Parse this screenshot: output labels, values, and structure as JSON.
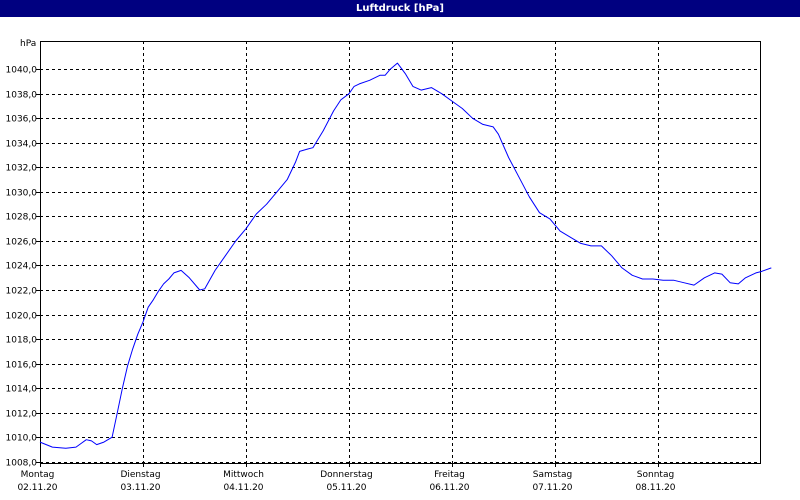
{
  "window": {
    "title": "Luftdruck [hPa]"
  },
  "chart_data": {
    "type": "line",
    "title": "Luftdruck [hPa]",
    "ylabel": "hPa",
    "xlabel": "",
    "ylim": [
      1007.9,
      1042.3
    ],
    "yticks": [
      "1008,0",
      "1010,0",
      "1012,0",
      "1014,0",
      "1016,0",
      "1018,0",
      "1020,0",
      "1022,0",
      "1024,0",
      "1026,0",
      "1028,0",
      "1030,0",
      "1032,0",
      "1034,0",
      "1036,0",
      "1038,0",
      "1040,0"
    ],
    "ytick_values": [
      1008,
      1010,
      1012,
      1014,
      1016,
      1018,
      1020,
      1022,
      1024,
      1026,
      1028,
      1030,
      1032,
      1034,
      1036,
      1038,
      1040
    ],
    "days": [
      {
        "weekday": "Montag",
        "date": "02.11.20"
      },
      {
        "weekday": "Dienstag",
        "date": "03.11.20"
      },
      {
        "weekday": "Mittwoch",
        "date": "04.11.20"
      },
      {
        "weekday": "Donnerstag",
        "date": "05.11.20"
      },
      {
        "weekday": "Freitag",
        "date": "06.11.20"
      },
      {
        "weekday": "Samstag",
        "date": "07.11.20"
      },
      {
        "weekday": "Sonntag",
        "date": "08.11.20"
      }
    ],
    "grid": true,
    "series": [
      {
        "color": "#0000ff",
        "points": [
          [
            0.0,
            1009.6
          ],
          [
            0.06,
            1009.4
          ],
          [
            0.12,
            1009.2
          ],
          [
            0.25,
            1009.1
          ],
          [
            0.35,
            1009.2
          ],
          [
            0.4,
            1009.5
          ],
          [
            0.45,
            1009.8
          ],
          [
            0.5,
            1009.7
          ],
          [
            0.55,
            1009.4
          ],
          [
            0.62,
            1009.6
          ],
          [
            0.7,
            1010.0
          ],
          [
            0.75,
            1012.0
          ],
          [
            0.8,
            1014.0
          ],
          [
            0.85,
            1015.8
          ],
          [
            0.9,
            1017.2
          ],
          [
            0.95,
            1018.4
          ],
          [
            1.0,
            1019.4
          ],
          [
            1.05,
            1020.6
          ],
          [
            1.1,
            1021.2
          ],
          [
            1.15,
            1021.9
          ],
          [
            1.2,
            1022.5
          ],
          [
            1.25,
            1022.9
          ],
          [
            1.3,
            1023.4
          ],
          [
            1.37,
            1023.6
          ],
          [
            1.45,
            1023.0
          ],
          [
            1.55,
            1022.0
          ],
          [
            1.6,
            1022.1
          ],
          [
            1.7,
            1023.6
          ],
          [
            1.8,
            1024.8
          ],
          [
            1.9,
            1026.0
          ],
          [
            2.0,
            1027.0
          ],
          [
            2.1,
            1028.2
          ],
          [
            2.2,
            1029.0
          ],
          [
            2.3,
            1030.0
          ],
          [
            2.4,
            1031.0
          ],
          [
            2.48,
            1032.4
          ],
          [
            2.52,
            1033.3
          ],
          [
            2.6,
            1033.5
          ],
          [
            2.65,
            1033.6
          ],
          [
            2.75,
            1035.0
          ],
          [
            2.85,
            1036.6
          ],
          [
            2.92,
            1037.5
          ],
          [
            3.0,
            1038.0
          ],
          [
            3.05,
            1038.6
          ],
          [
            3.1,
            1038.8
          ],
          [
            3.2,
            1039.1
          ],
          [
            3.3,
            1039.5
          ],
          [
            3.35,
            1039.5
          ],
          [
            3.4,
            1040.0
          ],
          [
            3.47,
            1040.5
          ],
          [
            3.55,
            1039.6
          ],
          [
            3.62,
            1038.6
          ],
          [
            3.7,
            1038.3
          ],
          [
            3.8,
            1038.5
          ],
          [
            3.9,
            1038.0
          ],
          [
            4.0,
            1037.4
          ],
          [
            4.1,
            1036.8
          ],
          [
            4.2,
            1036.0
          ],
          [
            4.3,
            1035.5
          ],
          [
            4.4,
            1035.3
          ],
          [
            4.45,
            1034.7
          ],
          [
            4.55,
            1032.8
          ],
          [
            4.65,
            1031.2
          ],
          [
            4.75,
            1029.6
          ],
          [
            4.85,
            1028.3
          ],
          [
            4.95,
            1027.8
          ],
          [
            5.05,
            1026.8
          ],
          [
            5.15,
            1026.3
          ],
          [
            5.25,
            1025.8
          ],
          [
            5.35,
            1025.6
          ],
          [
            5.45,
            1025.6
          ],
          [
            5.55,
            1024.8
          ],
          [
            5.65,
            1023.8
          ],
          [
            5.75,
            1023.2
          ],
          [
            5.85,
            1022.9
          ],
          [
            5.95,
            1022.9
          ],
          [
            6.05,
            1022.8
          ],
          [
            6.15,
            1022.8
          ],
          [
            6.25,
            1022.6
          ],
          [
            6.35,
            1022.4
          ],
          [
            6.45,
            1023.0
          ],
          [
            6.55,
            1023.4
          ],
          [
            6.62,
            1023.3
          ],
          [
            6.7,
            1022.6
          ],
          [
            6.78,
            1022.5
          ],
          [
            6.85,
            1023.0
          ],
          [
            6.95,
            1023.4
          ],
          [
            7.0,
            1023.5
          ],
          [
            7.1,
            1023.8
          ]
        ]
      }
    ]
  }
}
